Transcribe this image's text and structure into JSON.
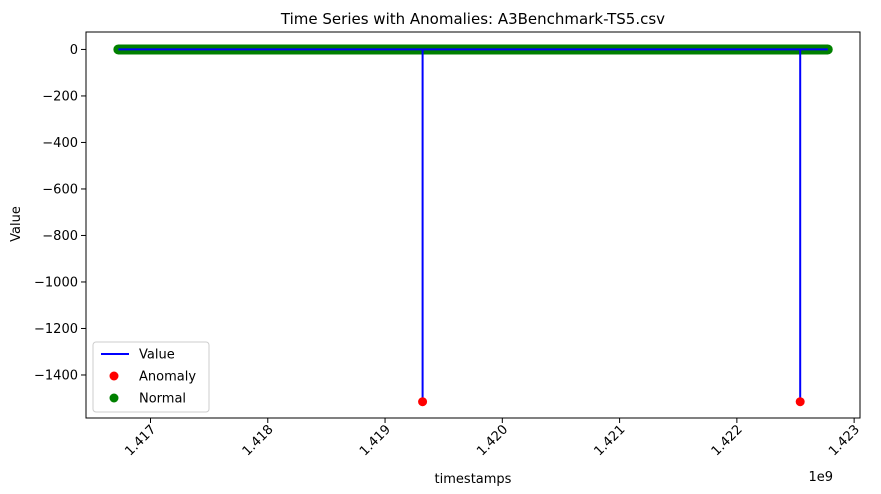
{
  "chart_data": {
    "type": "line",
    "title": "Time Series with Anomalies: A3Benchmark-TS5.csv",
    "xlabel": "timestamps",
    "ylabel": "Value",
    "x_offset_label": "1e9",
    "xlim": [
      1416450000,
      1423050000
    ],
    "ylim": [
      -1585,
      75
    ],
    "x_ticks": [
      1417000000,
      1418000000,
      1419000000,
      1420000000,
      1421000000,
      1422000000,
      1423000000
    ],
    "x_tick_labels": [
      "1.417",
      "1.418",
      "1.419",
      "1.420",
      "1.421",
      "1.422",
      "1.423"
    ],
    "y_ticks": [
      0,
      -200,
      -400,
      -600,
      -800,
      -1000,
      -1200,
      -1400
    ],
    "y_tick_labels": [
      "0",
      "−200",
      "−400",
      "−600",
      "−800",
      "−1000",
      "−1200",
      "−1400"
    ],
    "grid": false,
    "legend_placement": "lower-left",
    "series": [
      {
        "name": "Value",
        "kind": "line",
        "color": "#0000ff",
        "x": [
          1416726000,
          1419320000,
          1419320000,
          1419320000,
          1422540000,
          1422540000,
          1422540000,
          1422775000
        ],
        "y": [
          0,
          0,
          -1515,
          0,
          0,
          -1515,
          0,
          0
        ]
      },
      {
        "name": "Anomaly",
        "kind": "scatter",
        "color": "#ff0000",
        "x": [
          1419320000,
          1422540000
        ],
        "y": [
          -1515,
          -1515
        ]
      },
      {
        "name": "Normal",
        "kind": "scatter",
        "color": "#008000",
        "x_start": 1416726000,
        "x_end": 1422775000,
        "y": 0
      }
    ]
  }
}
